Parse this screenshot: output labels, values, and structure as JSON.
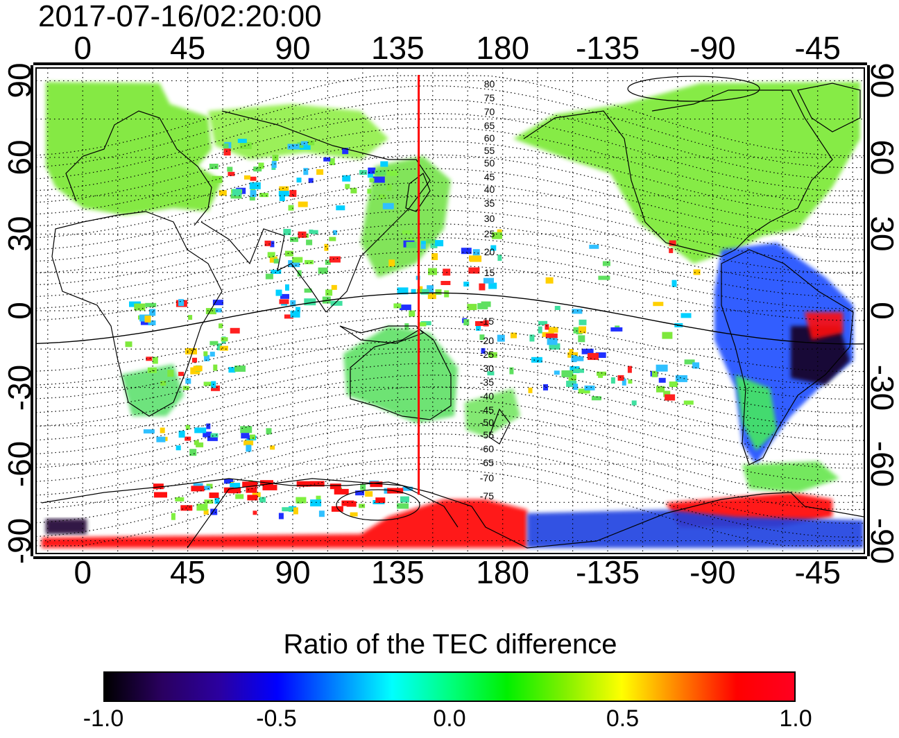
{
  "timestamp": "2017-07-16/02:20:00",
  "map": {
    "lon_ticks": [
      "0",
      "45",
      "90",
      "135",
      "180",
      "-135",
      "-90",
      "-45"
    ],
    "lat_ticks": [
      "90",
      "60",
      "30",
      "0",
      "-30",
      "-60",
      "-90"
    ],
    "lon_range": [
      -20,
      335
    ],
    "lat_range": [
      -95,
      95
    ],
    "grid": "dotted",
    "red_line_longitude": 144,
    "magnetic_lat_labels_north": [
      "80",
      "75",
      "70",
      "65",
      "60",
      "55",
      "50",
      "45",
      "40",
      "35",
      "30",
      "25",
      "20",
      "15"
    ],
    "magnetic_lat_labels_south": [
      "-15",
      "-20",
      "-25",
      "-30",
      "-35",
      "-40",
      "-45",
      "-50",
      "-55",
      "-60",
      "-65",
      "-70",
      "-75"
    ]
  },
  "colorbar": {
    "title": "Ratio of the TEC difference",
    "tick_labels": [
      "-1.0",
      "-0.5",
      "0.0",
      "0.5",
      "1.0"
    ],
    "range": [
      -1.0,
      1.0
    ],
    "colors": [
      "#000000",
      "#2a0060",
      "#2b00a0",
      "#0000ff",
      "#0080ff",
      "#00ffff",
      "#00ff80",
      "#00f000",
      "#80f000",
      "#ffff00",
      "#ff8000",
      "#ff0000",
      "#ff0020"
    ]
  }
}
